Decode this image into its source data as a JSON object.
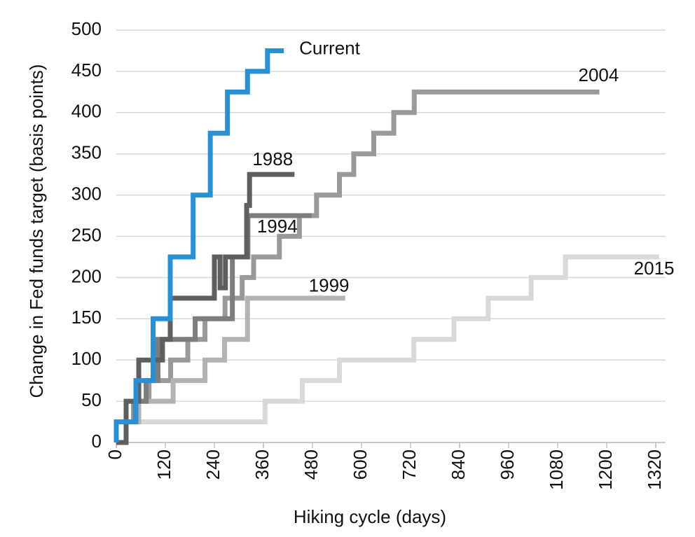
{
  "chart_data": {
    "type": "line",
    "step": "post",
    "x_label": "Hiking cycle (days)",
    "y_label": "Change in Fed funds target (basis points)",
    "xlim": [
      0,
      1344
    ],
    "ylim": [
      0,
      500
    ],
    "xticks": [
      0,
      120,
      240,
      360,
      480,
      600,
      720,
      840,
      960,
      1080,
      1200,
      1320
    ],
    "yticks": [
      0,
      50,
      100,
      150,
      200,
      250,
      300,
      350,
      400,
      450,
      500
    ],
    "grid": true,
    "series": [
      {
        "name": "2015",
        "color": "#d9d9d9",
        "x": [
          0,
          364,
          455,
          546,
          728,
          826,
          910,
          1015,
          1099,
          1328
        ],
        "values": [
          25,
          50,
          75,
          100,
          125,
          150,
          175,
          200,
          225,
          225
        ]
      },
      {
        "name": "2004",
        "color": "#9a9a9a",
        "x": [
          0,
          42,
          80,
          133,
          175,
          217,
          266,
          308,
          336,
          399,
          448,
          490,
          546,
          581,
          630,
          679,
          729,
          1182
        ],
        "values": [
          25,
          50,
          75,
          100,
          125,
          150,
          175,
          200,
          225,
          250,
          275,
          300,
          325,
          350,
          375,
          400,
          425,
          425
        ]
      },
      {
        "name": "1999",
        "color": "#b3b3b3",
        "x": [
          0,
          55,
          139,
          217,
          265,
          321,
          560
        ],
        "values": [
          25,
          50,
          75,
          100,
          125,
          175,
          175
        ]
      },
      {
        "name": "1994",
        "color": "#7d7d7d",
        "x": [
          0,
          46,
          73,
          102,
          193,
          284,
          322,
          478
        ],
        "values": [
          25,
          50,
          75,
          125,
          150,
          225,
          275,
          275
        ]
      },
      {
        "name": "1988",
        "color": "#5f5f5f",
        "x": [
          0,
          24,
          55,
          113,
          132,
          240,
          254,
          267,
          319,
          326,
          436
        ],
        "values": [
          0,
          50,
          100,
          125,
          175,
          225,
          187.5,
          225,
          287.5,
          325,
          325
        ]
      },
      {
        "name": "Current",
        "color": "#2b8fd3",
        "x": [
          0,
          0,
          48,
          90,
          132,
          188,
          230,
          272,
          321,
          370,
          410
        ],
        "values": [
          0,
          25,
          75,
          150,
          225,
          300,
          375,
          425,
          450,
          475,
          475
        ]
      }
    ]
  }
}
